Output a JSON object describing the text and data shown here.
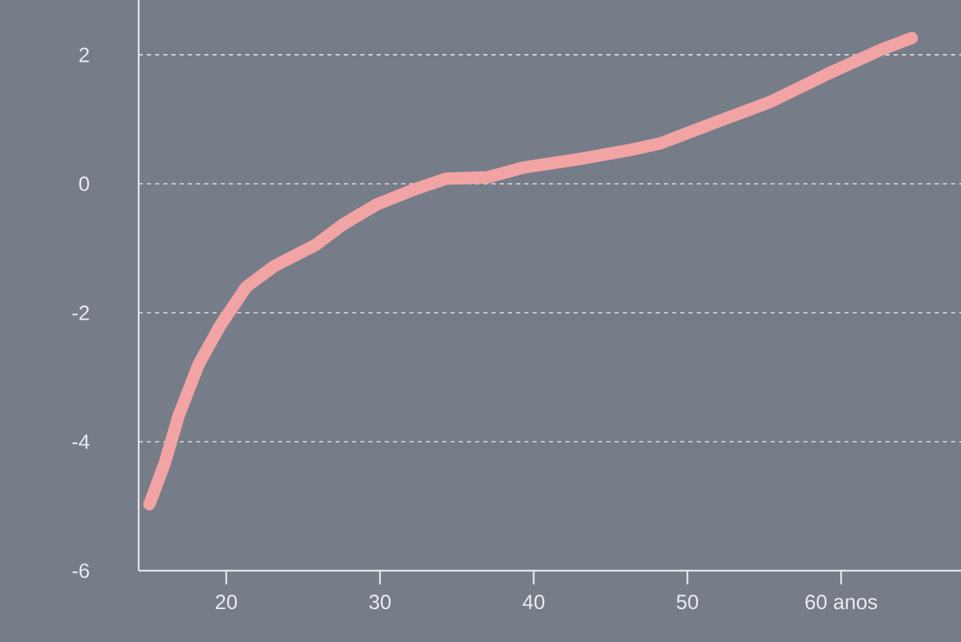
{
  "chart_data": {
    "type": "line",
    "x": [
      15.0,
      16.0,
      16.9,
      18.2,
      19.6,
      21.3,
      23.1,
      25.8,
      27.6,
      29.8,
      32.1,
      34.3,
      37.0,
      39.3,
      42.9,
      46.4,
      48.3,
      51.8,
      55.4,
      59.0,
      62.5,
      64.6
    ],
    "series": [
      {
        "color": "#f2a3a3",
        "values": [
          -4.97,
          -4.33,
          -3.6,
          -2.8,
          -2.2,
          -1.6,
          -1.28,
          -0.95,
          -0.63,
          -0.32,
          -0.1,
          0.08,
          0.1,
          0.25,
          0.38,
          0.53,
          0.63,
          0.95,
          1.27,
          1.69,
          2.07,
          2.26
        ]
      }
    ],
    "xlim": [
      14.3,
      67.8
    ],
    "ylim": [
      -6,
      2.85
    ],
    "xticks": [
      20,
      30,
      40,
      50,
      {
        "value": 60,
        "label": "60 anos"
      }
    ],
    "yticks": [
      -6,
      -4,
      -2,
      0,
      2
    ],
    "grid": "y",
    "marker": "none",
    "line_style": "solid"
  }
}
